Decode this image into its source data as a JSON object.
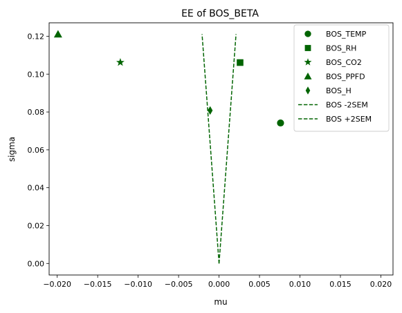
{
  "chart_data": {
    "type": "scatter",
    "title": "EE of BOS_BETA",
    "xlabel": "mu",
    "ylabel": "sigma",
    "xlim": [
      -0.021,
      0.0215
    ],
    "ylim": [
      -0.0061,
      0.1271
    ],
    "xticks": [
      -0.02,
      -0.015,
      -0.01,
      -0.005,
      0.0,
      0.005,
      0.01,
      0.015,
      0.02
    ],
    "xtick_labels": [
      "−0.020",
      "−0.015",
      "−0.010",
      "−0.005",
      "0.000",
      "0.005",
      "0.010",
      "0.015",
      "0.020"
    ],
    "yticks": [
      0.0,
      0.02,
      0.04,
      0.06,
      0.08,
      0.1,
      0.12
    ],
    "ytick_labels": [
      "0.00",
      "0.02",
      "0.04",
      "0.06",
      "0.08",
      "0.10",
      "0.12"
    ],
    "grid": false,
    "legend_position": "top-right",
    "color": "#006400",
    "points": [
      {
        "name": "BOS_TEMP",
        "marker": "circle",
        "x": 0.0076,
        "y": 0.0742
      },
      {
        "name": "BOS_RH",
        "marker": "square",
        "x": 0.0026,
        "y": 0.1061
      },
      {
        "name": "BOS_CO2",
        "marker": "star",
        "x": -0.0122,
        "y": 0.1062
      },
      {
        "name": "BOS_PPFD",
        "marker": "triangle",
        "x": -0.0199,
        "y": 0.1211
      },
      {
        "name": "BOS_H",
        "marker": "diamond",
        "x": -0.0011,
        "y": 0.0808
      }
    ],
    "lines": [
      {
        "name": "BOS -2SEM",
        "style": "dashed",
        "x": [
          0,
          -0.0021
        ],
        "y": [
          0,
          0.1211
        ]
      },
      {
        "name": "BOS +2SEM",
        "style": "dashed",
        "x": [
          0,
          0.0021
        ],
        "y": [
          0,
          0.1211
        ]
      }
    ]
  }
}
